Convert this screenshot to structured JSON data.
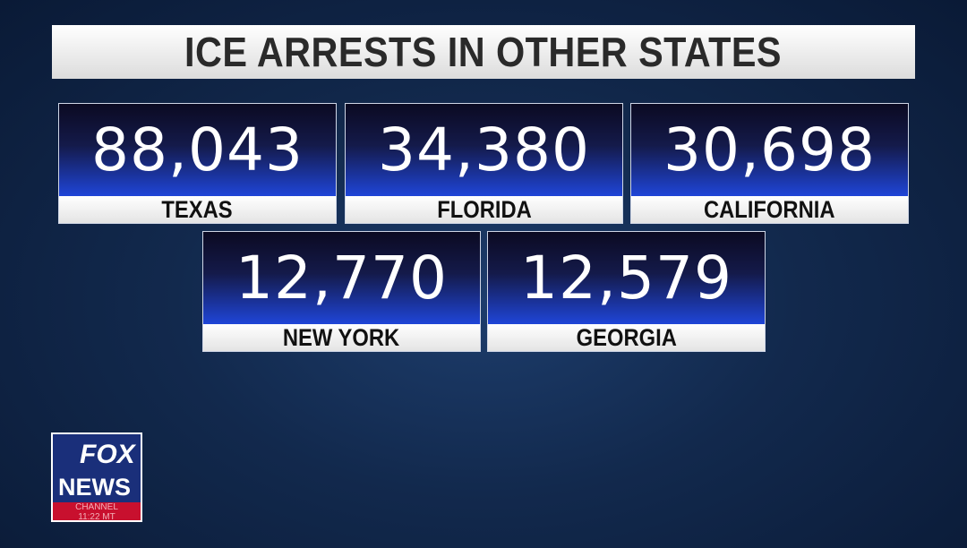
{
  "header": {
    "title": "ICE ARRESTS IN OTHER STATES"
  },
  "cards": [
    {
      "value": "88,043",
      "state": "TEXAS"
    },
    {
      "value": "34,380",
      "state": "FLORIDA"
    },
    {
      "value": "30,698",
      "state": "CALIFORNIA"
    },
    {
      "value": "12,770",
      "state": "NEW YORK"
    },
    {
      "value": "12,579",
      "state": "GEORGIA"
    }
  ],
  "logo": {
    "line1": "FOX",
    "line2": "NEWS",
    "line3": "CHANNEL",
    "time": "11:22 MT"
  }
}
